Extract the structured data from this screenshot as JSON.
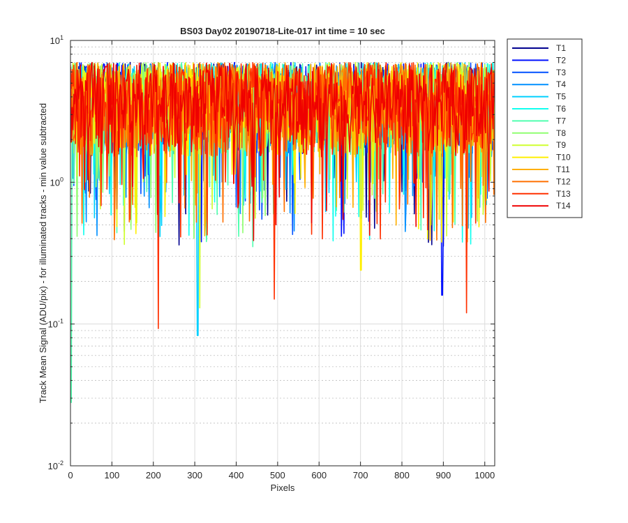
{
  "chart_data": {
    "type": "line",
    "title": "BS03 Day02 20190718-Lite-017 int time = 10 sec",
    "xlabel": "Pixels",
    "ylabel": "Track Mean Signal (ADU/pix) - for illuminated tracks - min value subtracted",
    "xlim": [
      0,
      1024
    ],
    "ylim": [
      0.01,
      10
    ],
    "yscale": "log",
    "grid": true,
    "legend_position": "outside-top-right",
    "x_ticks": [
      "0",
      "100",
      "200",
      "300",
      "400",
      "500",
      "600",
      "700",
      "800",
      "900",
      "1000"
    ],
    "y_ticks": [
      {
        "base": "10",
        "exp": "-2"
      },
      {
        "base": "10",
        "exp": "-1"
      },
      {
        "base": "10",
        "exp": "0"
      },
      {
        "base": "10",
        "exp": "1"
      }
    ],
    "series": [
      {
        "name": "T1",
        "color": "#00008f"
      },
      {
        "name": "T2",
        "color": "#0010ff"
      },
      {
        "name": "T3",
        "color": "#0050ff"
      },
      {
        "name": "T4",
        "color": "#0090ff"
      },
      {
        "name": "T5",
        "color": "#00d0ff"
      },
      {
        "name": "T6",
        "color": "#10ffef"
      },
      {
        "name": "T7",
        "color": "#50ffaf"
      },
      {
        "name": "T8",
        "color": "#8fff70"
      },
      {
        "name": "T9",
        "color": "#cfff30"
      },
      {
        "name": "T10",
        "color": "#ffef00"
      },
      {
        "name": "T11",
        "color": "#ffaf00"
      },
      {
        "name": "T12",
        "color": "#ff7000"
      },
      {
        "name": "T13",
        "color": "#ff3000"
      },
      {
        "name": "T14",
        "color": "#ef0000"
      }
    ],
    "typical_range": {
      "min": 1.5,
      "max": 7
    },
    "notable_dips": [
      {
        "series": "T7",
        "x": 1,
        "y": 0.028
      },
      {
        "series": "T13",
        "x": 212,
        "y": 0.093
      },
      {
        "series": "T5",
        "x": 307,
        "y": 0.083
      },
      {
        "series": "T9",
        "x": 312,
        "y": 0.13
      },
      {
        "series": "T13",
        "x": 492,
        "y": 0.15
      },
      {
        "series": "T10",
        "x": 701,
        "y": 0.24
      },
      {
        "series": "T2",
        "x": 897,
        "y": 0.16
      },
      {
        "series": "T13",
        "x": 956,
        "y": 0.12
      }
    ]
  }
}
